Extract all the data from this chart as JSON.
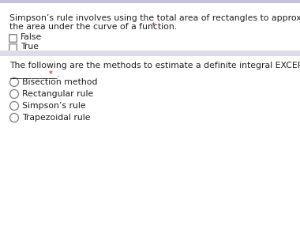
{
  "bg_color": "#ffffff",
  "divider_color": "#dddde8",
  "text_color": "#202020",
  "required_color": "#cc0000",
  "question1_line1": "Simpson’s rule involves using the total area of rectangles to approximate",
  "question1_line2": "the area under the curve of a function.",
  "q1_options": [
    "False",
    "True"
  ],
  "question2_line1": "The following are the methods to estimate a definite integral EXCEPT",
  "question2_line2": "___________.",
  "q2_options": [
    "Bisection method",
    "Rectangular rule",
    "Simpson’s rule",
    "Trapezoidal rule"
  ],
  "font_size_question": 7.8,
  "font_size_option": 7.8,
  "top_bar_color": "#c5c3d8",
  "top_bar_height": 4
}
